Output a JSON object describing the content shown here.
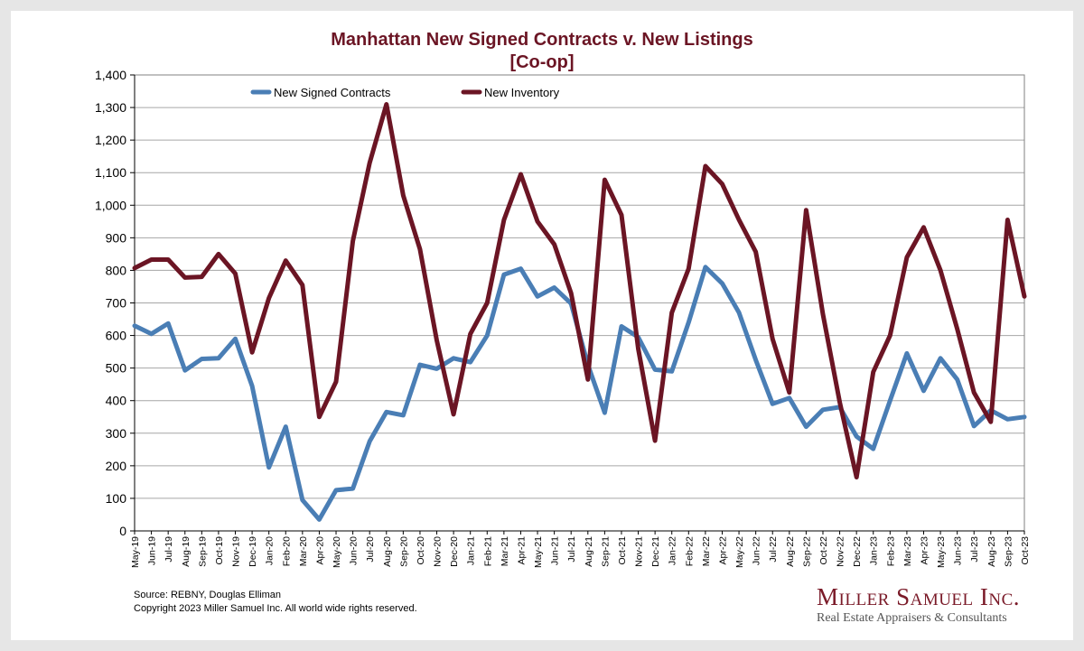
{
  "chart_data": {
    "type": "line",
    "title": "Manhattan New Signed Contracts v. New Listings",
    "subtitle": "[Co-op]",
    "xlabel": "",
    "ylabel": "",
    "ylim": [
      0,
      1400
    ],
    "yticks": [
      0,
      100,
      200,
      300,
      400,
      500,
      600,
      700,
      800,
      900,
      1000,
      1100,
      1200,
      1300,
      1400
    ],
    "ytick_labels": [
      "0",
      "100",
      "200",
      "300",
      "400",
      "500",
      "600",
      "700",
      "800",
      "900",
      "1,000",
      "1,100",
      "1,200",
      "1,300",
      "1,400"
    ],
    "grid": true,
    "legend_position": "top",
    "categories": [
      "May-19",
      "Jun-19",
      "Jul-19",
      "Aug-19",
      "Sep-19",
      "Oct-19",
      "Nov-19",
      "Dec-19",
      "Jan-20",
      "Feb-20",
      "Mar-20",
      "Apr-20",
      "May-20",
      "Jun-20",
      "Jul-20",
      "Aug-20",
      "Sep-20",
      "Oct-20",
      "Nov-20",
      "Dec-20",
      "Jan-21",
      "Feb-21",
      "Mar-21",
      "Apr-21",
      "May-21",
      "Jun-21",
      "Jul-21",
      "Aug-21",
      "Sep-21",
      "Oct-21",
      "Nov-21",
      "Dec-21",
      "Jan-22",
      "Feb-22",
      "Mar-22",
      "Apr-22",
      "May-22",
      "Jun-22",
      "Jul-22",
      "Aug-22",
      "Sep-22",
      "Oct-22",
      "Nov-22",
      "Dec-22",
      "Jan-23",
      "Feb-23",
      "Mar-23",
      "Apr-23",
      "May-23",
      "Jun-23",
      "Jul-23",
      "Aug-23",
      "Sep-23",
      "Oct-23"
    ],
    "series": [
      {
        "name": "New Signed Contracts",
        "color": "#4a7eb5",
        "values": [
          630,
          605,
          637,
          493,
          528,
          530,
          590,
          445,
          195,
          320,
          95,
          35,
          125,
          130,
          275,
          365,
          355,
          510,
          498,
          530,
          518,
          600,
          787,
          805,
          720,
          747,
          698,
          510,
          363,
          628,
          595,
          495,
          490,
          640,
          810,
          760,
          670,
          525,
          390,
          408,
          320,
          372,
          380,
          290,
          252,
          400,
          545,
          430,
          530,
          465,
          322,
          370,
          343,
          350
        ]
      },
      {
        "name": "New Inventory",
        "color": "#6b1524",
        "values": [
          807,
          833,
          833,
          778,
          780,
          850,
          790,
          548,
          715,
          830,
          755,
          350,
          458,
          890,
          1130,
          1310,
          1030,
          865,
          585,
          358,
          605,
          700,
          955,
          1095,
          950,
          880,
          730,
          465,
          1078,
          970,
          560,
          277,
          670,
          805,
          1120,
          1065,
          955,
          857,
          590,
          425,
          985,
          665,
          395,
          165,
          488,
          600,
          840,
          932,
          800,
          620,
          425,
          335,
          955,
          720
        ]
      }
    ]
  },
  "footer": {
    "source": "Source: REBNY, Douglas Elliman",
    "copyright": "Copyright 2023 Miller Samuel Inc.  All world wide rights reserved."
  },
  "brand": {
    "name": "Miller Samuel Inc.",
    "tagline": "Real Estate Appraisers & Consultants"
  }
}
